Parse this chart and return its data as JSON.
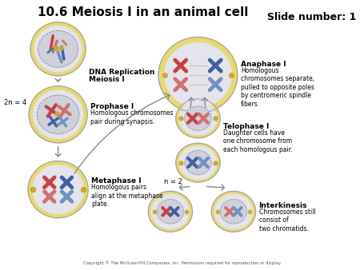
{
  "title": "10.6 Meiosis I in an animal cell",
  "slide_number": "Slide number: 1",
  "background_color": "#ffffff",
  "title_fontsize": 11,
  "slide_fontsize": 9,
  "copyright": "Copyright © The McGraw-Hill Companies, Inc. Permission required for reproduction or display.",
  "labels": {
    "dna_rep": "DNA Replication",
    "meiosis_I": "Meiosis I",
    "prophase": "Prophase I",
    "prophase_desc": "Homologous chromosomes\npair during synapsis.",
    "metaphase": "Metaphase I",
    "metaphase_desc": "Homologous pairs\nalign at the metaphase\nplate.",
    "anaphase": "Anaphase I",
    "anaphase_desc": "Homologous\nchromosomes separate,\npulled to opposite poles\nby centromeric spindle\nfibers.",
    "telophase": "Telophase I",
    "telophase_desc": "Daughter cells have\none chromosome from\neach homologous pair.",
    "interkinesis": "Interkinesis",
    "interkinesis_desc": "Chromosomes still\nconsist of\ntwo chromatids.",
    "2n4": "2n = 4",
    "n2": "n = 2"
  },
  "colors": {
    "chrom_red": "#c84040",
    "chrom_blue": "#4060a0",
    "chrom_red_light": "#d07070",
    "chrom_blue_light": "#7090c0",
    "chrom_teal": "#408080",
    "chrom_orange": "#d08040",
    "aster": "#c8a830",
    "arrow_color": "#888888",
    "text_color": "#000000",
    "cell_yellow": "#e8d870",
    "cell_gray": "#d8d8e0",
    "cell_lgray": "#e4e4ec",
    "nuclear_border": "#9090a0",
    "nuclear_fill": "#d0d0dc",
    "cell_border": "#a0a0a8"
  }
}
